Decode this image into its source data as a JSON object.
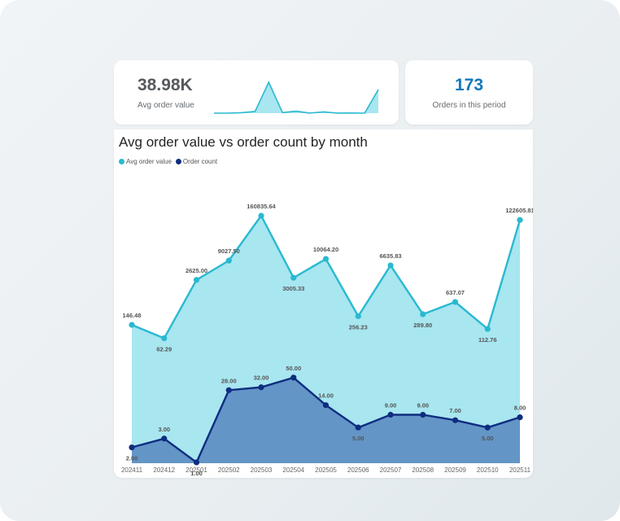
{
  "kpis": {
    "avg_value": "38.98K",
    "avg_label": "Avg order value",
    "orders_value": "173",
    "orders_label": "Orders in this period"
  },
  "colors": {
    "avg_line": "#29b9d0",
    "avg_fill": "#a8e6f0",
    "count_line": "#0f2d80",
    "count_fill": "#6395c6",
    "kpi_number": "#1279b8"
  },
  "chart_data": {
    "type": "area",
    "title": "Avg order value vs order count by month",
    "categories": [
      "202411",
      "202412",
      "202501",
      "202502",
      "202503",
      "202504",
      "202505",
      "202506",
      "202507",
      "202508",
      "202509",
      "202510",
      "202511"
    ],
    "series": [
      {
        "name": "Avg order value",
        "values": [
          146.48,
          62.29,
          2625.0,
          9027.5,
          160835.64,
          3005.33,
          10064.2,
          256.23,
          6635.83,
          289.8,
          637.07,
          112.76,
          122605.81
        ],
        "labels": [
          "146.48",
          "62.29",
          "2625.00",
          "9027.50",
          "160835.64",
          "3005.33",
          "10064.20",
          "256.23",
          "6635.83",
          "289.80",
          "637.07",
          "112.76",
          "122605.81"
        ],
        "axis": "log"
      },
      {
        "name": "Order count",
        "values": [
          2,
          3,
          1,
          28,
          32,
          50,
          14,
          5,
          9,
          9,
          7,
          5,
          8
        ],
        "labels": [
          "2.00",
          "3.00",
          "1.00",
          "28.00",
          "32.00",
          "50.00",
          "14.00",
          "5.00",
          "9.00",
          "9.00",
          "7.00",
          "5.00",
          "8.00"
        ],
        "axis": "log"
      }
    ],
    "legend": "top-left",
    "grid": false
  },
  "sparkline": {
    "values": [
      146.48,
      62.29,
      2625.0,
      9027.5,
      160835.64,
      3005.33,
      10064.2,
      256.23,
      6635.83,
      289.8,
      637.07,
      112.76,
      122605.81
    ]
  }
}
